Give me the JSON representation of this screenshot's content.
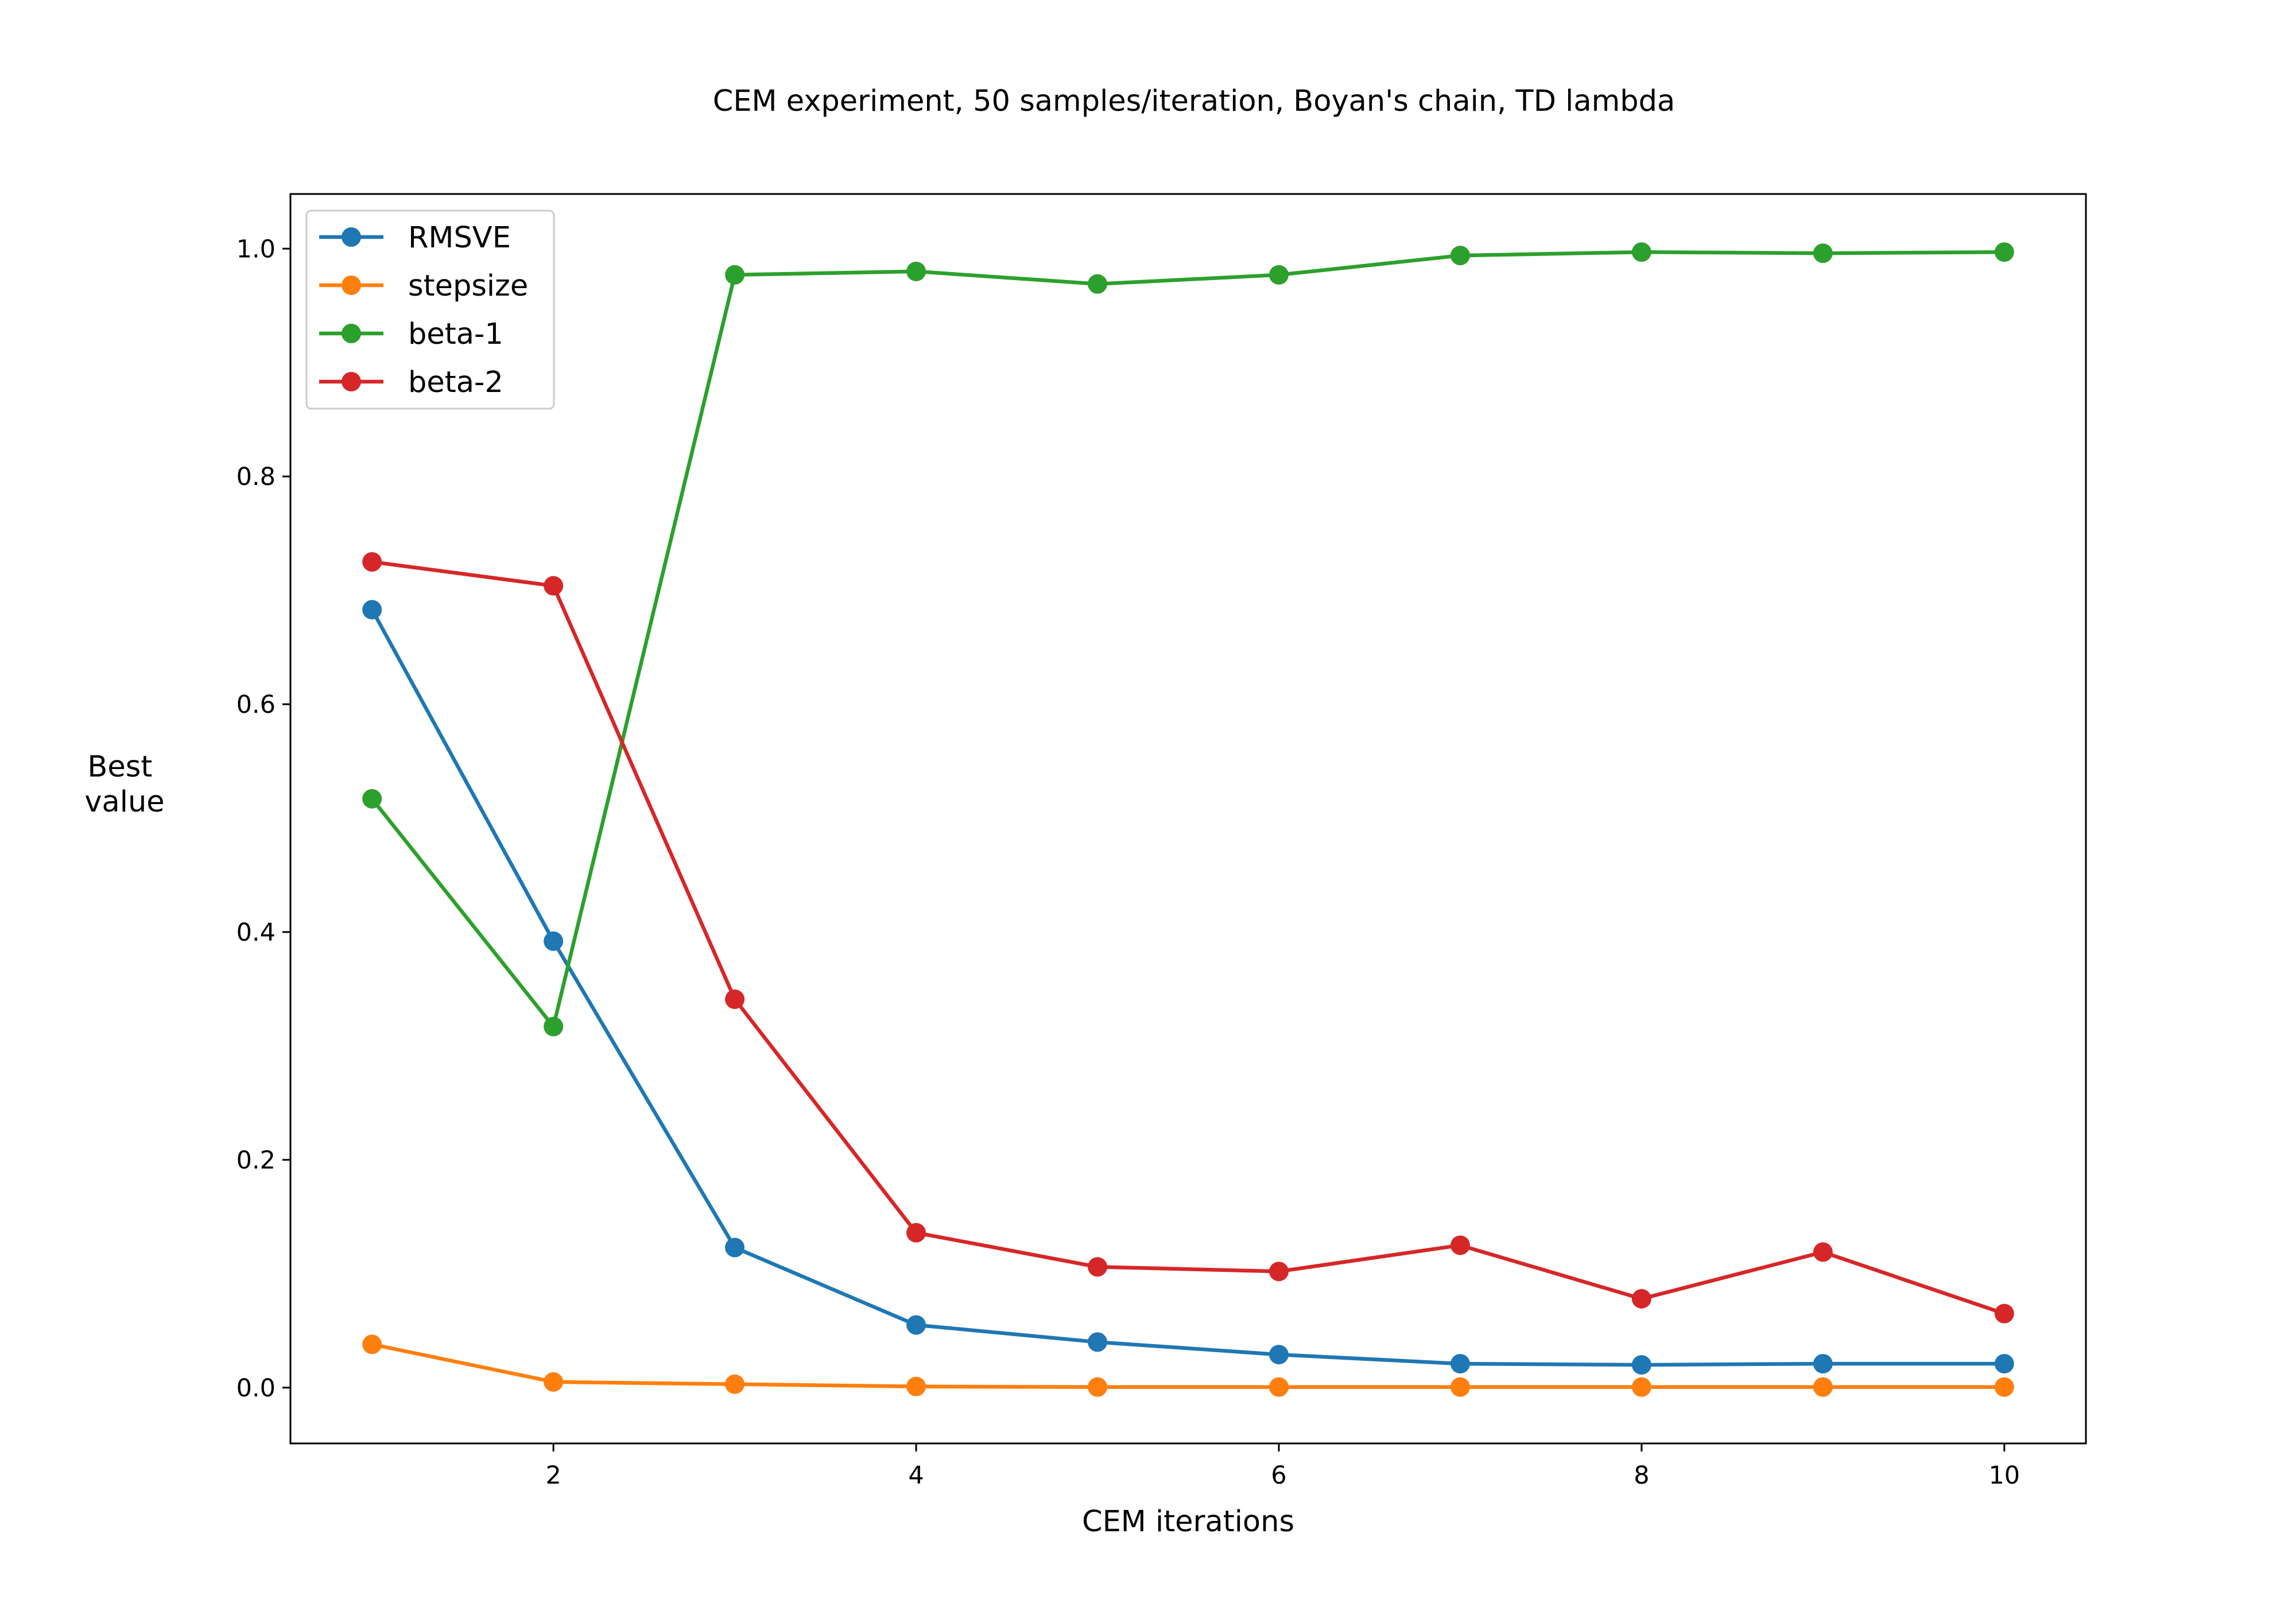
{
  "chart_data": {
    "type": "line",
    "title": "CEM experiment, 50 samples/iteration, Boyan's chain, TD lambda",
    "xlabel": "CEM iterations",
    "ylabel_lines": [
      "Best",
      "value"
    ],
    "xlim": [
      0.55,
      10.45
    ],
    "ylim": [
      -0.049,
      1.048
    ],
    "xticks": [
      2,
      4,
      6,
      8,
      10
    ],
    "xtick_labels": [
      "2",
      "4",
      "6",
      "8",
      "10"
    ],
    "yticks": [
      0.0,
      0.2,
      0.4,
      0.6,
      0.8,
      1.0
    ],
    "ytick_labels": [
      "0.0",
      "0.2",
      "0.4",
      "0.6",
      "0.8",
      "1.0"
    ],
    "grid": false,
    "legend_position": "upper left",
    "x": [
      1,
      2,
      3,
      4,
      5,
      6,
      7,
      8,
      9,
      10
    ],
    "series": [
      {
        "name": "RMSVE",
        "color": "#1f77b4",
        "values": [
          0.683,
          0.392,
          0.123,
          0.055,
          0.04,
          0.029,
          0.021,
          0.02,
          0.021,
          0.021
        ]
      },
      {
        "name": "stepsize",
        "color": "#ff7f0e",
        "values": [
          0.038,
          0.005,
          0.003,
          0.001,
          0.0005,
          0.0005,
          0.0005,
          0.0005,
          0.0005,
          0.0005
        ]
      },
      {
        "name": "beta-1",
        "color": "#2ca02c",
        "values": [
          0.517,
          0.317,
          0.977,
          0.98,
          0.969,
          0.977,
          0.994,
          0.997,
          0.996,
          0.997
        ]
      },
      {
        "name": "beta-2",
        "color": "#d62728",
        "values": [
          0.725,
          0.704,
          0.341,
          0.136,
          0.106,
          0.102,
          0.125,
          0.078,
          0.119,
          0.065
        ]
      }
    ]
  }
}
